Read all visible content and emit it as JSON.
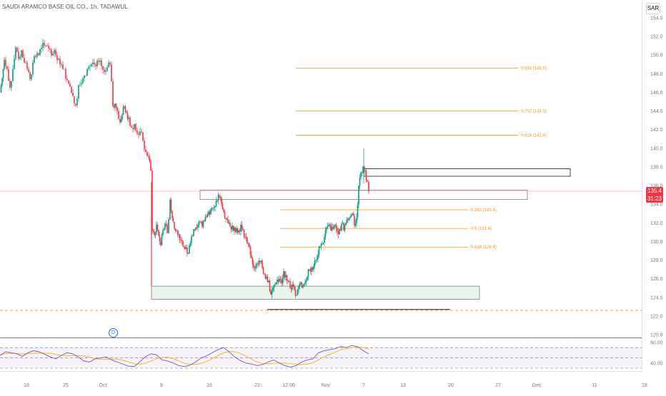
{
  "header": {
    "title": "SAUDI ARAMCO BASE OIL CO., 1h, TADAWUL",
    "currency": "SAR"
  },
  "colors": {
    "up": "#089981",
    "down": "#f23645",
    "fib": "#f7931a",
    "rsi": "#7e57c2",
    "rsi_ma": "#f5b700",
    "price_line": "#f23645",
    "support": "#f7931a"
  },
  "price_tag": {
    "value": "135.4",
    "countdown": "31:23"
  },
  "event_marker": {
    "label": "D"
  },
  "chart_data": [
    {
      "type": "candlestick",
      "title": "SAUDI ARAMCO BASE OIL CO., 1h, TADAWUL",
      "x_ticks": [
        "18",
        "25",
        "Oct",
        "9",
        "16",
        "23",
        "12:00",
        "Nov",
        "7",
        "13",
        "20",
        "27",
        "Dec",
        "11",
        "18"
      ],
      "y_ticks": [
        120,
        122,
        124,
        126,
        128,
        130,
        132,
        134,
        136,
        138,
        140,
        142,
        144,
        146,
        148,
        150,
        152,
        154
      ],
      "ylim": [
        119.5,
        155.5
      ],
      "last_price": 135.4,
      "path": [
        [
          0,
          146
        ],
        [
          3,
          147.5
        ],
        [
          6,
          149.5
        ],
        [
          10,
          148.5
        ],
        [
          14,
          146.5
        ],
        [
          18,
          148.5
        ],
        [
          22,
          150.8
        ],
        [
          26,
          149.6
        ],
        [
          30,
          150.5
        ],
        [
          34,
          149.2
        ],
        [
          38,
          148.5
        ],
        [
          42,
          147.4
        ],
        [
          46,
          149.2
        ],
        [
          50,
          149.8
        ],
        [
          54,
          150
        ],
        [
          58,
          150.8
        ],
        [
          62,
          151
        ],
        [
          66,
          151
        ],
        [
          70,
          150.6
        ],
        [
          74,
          150.2
        ],
        [
          78,
          150
        ],
        [
          82,
          149.6
        ],
        [
          86,
          149
        ],
        [
          90,
          148.5
        ],
        [
          94,
          147.3
        ],
        [
          98,
          146.6
        ],
        [
          102,
          145.6
        ],
        [
          106,
          144.6
        ],
        [
          110,
          146.8
        ],
        [
          114,
          147
        ],
        [
          118,
          147.8
        ],
        [
          122,
          148.5
        ],
        [
          126,
          148.8
        ],
        [
          130,
          149.2
        ],
        [
          134,
          148.8
        ],
        [
          138,
          149.3
        ],
        [
          142,
          148.8
        ],
        [
          146,
          148.2
        ],
        [
          150,
          148.7
        ],
        [
          154,
          149
        ],
        [
          158,
          144.5
        ],
        [
          161,
          144.8
        ],
        [
          164,
          144
        ],
        [
          168,
          142.8
        ],
        [
          171,
          143.6
        ],
        [
          174,
          144.5
        ],
        [
          177,
          143.8
        ],
        [
          180,
          143.3
        ],
        [
          184,
          142.2
        ],
        [
          188,
          142.6
        ],
        [
          192,
          141.6
        ],
        [
          196,
          141.8
        ],
        [
          200,
          140.8
        ],
        [
          204,
          139.6
        ],
        [
          208,
          139
        ],
        [
          211,
          137.6
        ],
        [
          213,
          131.2
        ],
        [
          216,
          130.7
        ],
        [
          219,
          131.8
        ],
        [
          222,
          130.6
        ],
        [
          225,
          129.6
        ],
        [
          228,
          131.2
        ],
        [
          231,
          131.9
        ],
        [
          234,
          130.9
        ],
        [
          236,
          132.4
        ],
        [
          238,
          134.5
        ],
        [
          241,
          132.5
        ],
        [
          244,
          131.4
        ],
        [
          247,
          131.1
        ],
        [
          250,
          130.8
        ],
        [
          253,
          130.2
        ],
        [
          256,
          129.5
        ],
        [
          259,
          129.2
        ],
        [
          262,
          128.7
        ],
        [
          265,
          129.6
        ],
        [
          268,
          130.6
        ],
        [
          271,
          131.3
        ],
        [
          274,
          131.5
        ],
        [
          277,
          131.8
        ],
        [
          280,
          132.1
        ],
        [
          283,
          131.6
        ],
        [
          286,
          132.2
        ],
        [
          289,
          132.6
        ],
        [
          292,
          133.2
        ],
        [
          295,
          133.5
        ],
        [
          298,
          133.6
        ],
        [
          301,
          133.8
        ],
        [
          304,
          134.4
        ],
        [
          307,
          134.8
        ],
        [
          310,
          134
        ],
        [
          313,
          133.2
        ],
        [
          316,
          132.5
        ],
        [
          319,
          132
        ],
        [
          322,
          131.6
        ],
        [
          325,
          131.7
        ],
        [
          328,
          131.5
        ],
        [
          331,
          131.4
        ],
        [
          334,
          131.2
        ],
        [
          337,
          131.8
        ],
        [
          340,
          131.2
        ],
        [
          343,
          130.5
        ],
        [
          346,
          129.8
        ],
        [
          349,
          129.4
        ],
        [
          352,
          128.2
        ],
        [
          355,
          127.2
        ],
        [
          358,
          127.5
        ],
        [
          361,
          127.6
        ],
        [
          364,
          127.8
        ],
        [
          367,
          127.2
        ],
        [
          370,
          126.5
        ],
        [
          373,
          126.2
        ],
        [
          376,
          125.8
        ],
        [
          379,
          124.3
        ],
        [
          382,
          125
        ],
        [
          385,
          125.4
        ],
        [
          388,
          125.9
        ],
        [
          391,
          126
        ],
        [
          394,
          125.5
        ],
        [
          397,
          126.8
        ],
        [
          400,
          126.4
        ],
        [
          403,
          125.7
        ],
        [
          406,
          125
        ],
        [
          409,
          125.4
        ],
        [
          412,
          124.8
        ],
        [
          415,
          124.3
        ],
        [
          418,
          125.2
        ],
        [
          421,
          125.6
        ],
        [
          424,
          125.2
        ],
        [
          427,
          125.6
        ],
        [
          430,
          126.2
        ],
        [
          433,
          127
        ],
        [
          436,
          127.2
        ],
        [
          439,
          127.4
        ],
        [
          442,
          128
        ],
        [
          445,
          128.6
        ],
        [
          448,
          129.5
        ],
        [
          451,
          129.8
        ],
        [
          454,
          130.5
        ],
        [
          457,
          131.5
        ],
        [
          460,
          131.8
        ],
        [
          463,
          131.2
        ],
        [
          466,
          131.4
        ],
        [
          469,
          131.8
        ],
        [
          472,
          131.1
        ],
        [
          475,
          131.3
        ],
        [
          478,
          131.9
        ],
        [
          481,
          131.2
        ],
        [
          484,
          132
        ],
        [
          487,
          132.3
        ],
        [
          490,
          132.6
        ],
        [
          493,
          133
        ],
        [
          496,
          131.7
        ],
        [
          499,
          132.6
        ],
        [
          502,
          136
        ],
        [
          505,
          137.4
        ],
        [
          508,
          138
        ],
        [
          511,
          137.6
        ],
        [
          514,
          136.4
        ],
        [
          516,
          135.4
        ]
      ],
      "rsi": {
        "ylim": [
          30,
          80
        ],
        "ticks": [
          80,
          40
        ],
        "levels": [
          70,
          50,
          30
        ],
        "values": [
          55,
          62,
          60,
          58,
          53,
          60,
          64,
          62,
          57,
          52,
          48,
          55,
          60,
          58,
          52,
          44,
          42,
          48,
          50,
          52,
          46,
          42,
          38,
          34,
          33,
          42,
          52,
          58,
          56,
          46,
          44,
          40,
          35,
          33,
          36,
          42,
          50,
          54,
          60,
          66,
          70,
          62,
          52,
          45,
          40,
          38,
          35,
          37,
          42,
          46,
          40,
          35,
          32,
          35,
          42,
          46,
          48,
          60,
          64,
          66,
          68,
          72,
          70,
          74,
          72,
          64,
          58
        ]
      }
    }
  ]
}
